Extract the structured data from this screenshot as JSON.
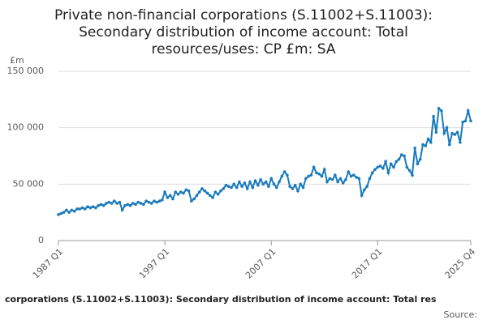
{
  "chart_data": {
    "type": "line",
    "title": [
      "Private non-financial corporations (S.11002+S.11003):",
      "Secondary distribution of income account: Total",
      "resources/uses: CP £m: SA"
    ],
    "y_label": "£m",
    "footer": "corporations (S.11002+S.11003): Secondary distribution of income account: Total res",
    "source": "Source:",
    "categories": [
      "1987 Q1",
      null,
      null,
      null,
      null,
      null,
      null,
      null,
      null,
      null,
      null,
      null,
      null,
      null,
      null,
      null,
      null,
      null,
      null,
      null,
      null,
      null,
      null,
      null,
      null,
      null,
      null,
      null,
      null,
      null,
      null,
      null,
      null,
      null,
      null,
      null,
      null,
      null,
      null,
      null,
      "1997 Q1",
      null,
      null,
      null,
      null,
      null,
      null,
      null,
      null,
      null,
      null,
      null,
      null,
      null,
      null,
      null,
      null,
      null,
      null,
      null,
      null,
      null,
      null,
      null,
      null,
      null,
      null,
      null,
      null,
      null,
      null,
      null,
      null,
      null,
      null,
      null,
      null,
      null,
      null,
      null,
      "2007 Q1",
      null,
      null,
      null,
      null,
      null,
      null,
      null,
      null,
      null,
      null,
      null,
      null,
      null,
      null,
      null,
      null,
      null,
      null,
      null,
      null,
      null,
      null,
      null,
      null,
      null,
      null,
      null,
      null,
      null,
      null,
      null,
      null,
      null,
      null,
      null,
      null,
      null,
      null,
      null,
      "2017 Q1",
      null,
      null,
      null,
      null,
      null,
      null,
      null,
      null,
      null,
      null,
      null,
      null,
      null,
      null,
      null,
      null,
      null,
      null,
      null,
      null,
      null,
      null,
      null,
      null,
      null,
      null,
      null,
      null,
      null,
      null,
      null,
      null,
      null,
      null,
      "2025 Q4"
    ],
    "series": [
      {
        "color": "#1a7bbd",
        "values": [
          23000,
          24000,
          25000,
          27000,
          25000,
          27000,
          26000,
          28000,
          28000,
          29000,
          28000,
          30000,
          29000,
          30000,
          29000,
          31000,
          32000,
          31000,
          33000,
          34000,
          33000,
          35000,
          33000,
          34000,
          27000,
          31000,
          32000,
          31000,
          33000,
          32000,
          34000,
          33000,
          32000,
          35000,
          34000,
          33000,
          35000,
          34000,
          35000,
          36000,
          43000,
          38000,
          40000,
          37000,
          43000,
          41000,
          43000,
          42000,
          45000,
          44000,
          35000,
          37000,
          40000,
          43000,
          46000,
          44000,
          42000,
          40000,
          38000,
          43000,
          41000,
          44000,
          46000,
          49000,
          48000,
          47000,
          50000,
          47000,
          52000,
          48000,
          51000,
          46000,
          52000,
          47000,
          53000,
          49000,
          54000,
          50000,
          52000,
          48000,
          55000,
          50000,
          47000,
          52000,
          57000,
          61000,
          58000,
          48000,
          46000,
          49000,
          44000,
          50000,
          47000,
          55000,
          57000,
          58000,
          65000,
          60000,
          59000,
          57000,
          63000,
          52000,
          55000,
          54000,
          58000,
          52000,
          55000,
          51000,
          54000,
          61000,
          57000,
          58000,
          56000,
          55000,
          40000,
          45000,
          48000,
          55000,
          60000,
          63000,
          65000,
          66000,
          64000,
          70000,
          60000,
          68000,
          65000,
          70000,
          72000,
          76000,
          75000,
          65000,
          62000,
          58000,
          82000,
          68000,
          72000,
          85000,
          84000,
          90000,
          87000,
          110000,
          96000,
          117000,
          115000,
          95000,
          100000,
          85000,
          95000,
          94000,
          96000,
          87000,
          105000,
          106000,
          115000,
          106000
        ]
      }
    ],
    "ylim": [
      0,
      150000
    ],
    "yticks": [
      0,
      {
        "value": 50000,
        "label": "50 000"
      },
      {
        "value": 100000,
        "label": "100 000"
      },
      {
        "value": 150000,
        "label": "150 000"
      }
    ],
    "grid": true
  }
}
